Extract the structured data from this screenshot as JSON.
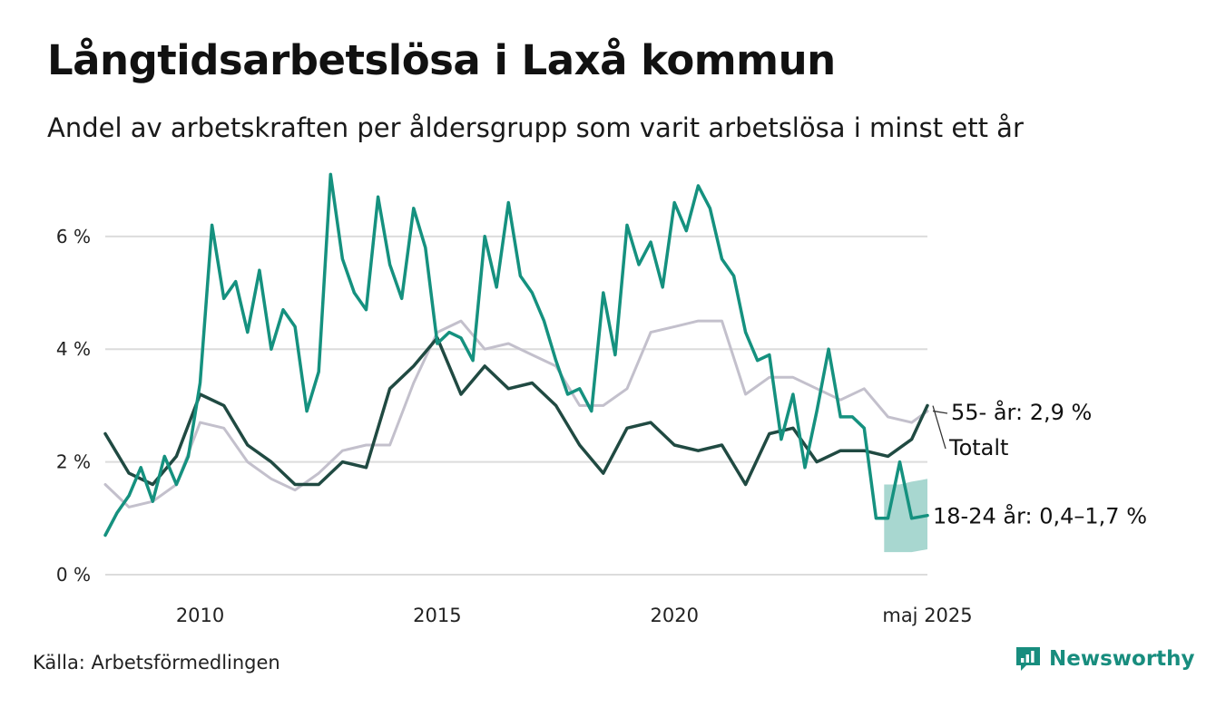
{
  "header": {
    "title": "Långtidsarbetslösa i Laxå kommun",
    "subtitle": "Andel av arbetskraften per åldersgrupp som varit arbetslösa i minst ett år"
  },
  "footer": {
    "source": "Källa: Arbetsförmedlingen",
    "brand": "Newsworthy"
  },
  "colors": {
    "youth": "#15917f",
    "total": "#204a42",
    "older": "#c3c0cc",
    "band": "#9fd3cb",
    "grid": "#dcdcdc",
    "brand": "#188d7e"
  },
  "chart_data": {
    "type": "line",
    "title": "Långtidsarbetslösa i Laxå kommun",
    "subtitle": "Andel av arbetskraften per åldersgrupp som varit arbetslösa i minst ett år",
    "xlabel": "",
    "ylabel": "",
    "x_range": [
      2008.0,
      2025.333
    ],
    "ylim": [
      0,
      7.3
    ],
    "y_ticks": [
      0,
      2,
      4,
      6
    ],
    "y_tick_labels": [
      "0 %",
      "2 %",
      "4 %",
      "6 %"
    ],
    "x_ticks": [
      2010,
      2015,
      2020,
      2025.333
    ],
    "x_tick_labels": [
      "2010",
      "2015",
      "2020",
      "maj 2025"
    ],
    "grid": true,
    "legend": "direct labels at line ends",
    "series": [
      {
        "key": "older",
        "end_label": "55- år: 2,9 %",
        "x": [
          2008.0,
          2008.5,
          2009.0,
          2009.5,
          2010.0,
          2010.5,
          2011.0,
          2011.5,
          2012.0,
          2012.5,
          2013.0,
          2013.5,
          2014.0,
          2014.5,
          2015.0,
          2015.5,
          2016.0,
          2016.5,
          2017.0,
          2017.5,
          2018.0,
          2018.5,
          2019.0,
          2019.5,
          2020.0,
          2020.5,
          2021.0,
          2021.5,
          2022.0,
          2022.5,
          2023.0,
          2023.5,
          2024.0,
          2024.5,
          2025.0,
          2025.333
        ],
        "values": [
          1.6,
          1.2,
          1.3,
          1.6,
          2.7,
          2.6,
          2.0,
          1.7,
          1.5,
          1.8,
          2.2,
          2.3,
          2.3,
          3.4,
          4.3,
          4.5,
          4.0,
          4.1,
          3.9,
          3.7,
          3.0,
          3.0,
          3.3,
          4.3,
          4.4,
          4.5,
          4.5,
          3.2,
          3.5,
          3.5,
          3.3,
          3.1,
          3.3,
          2.8,
          2.7,
          2.9
        ]
      },
      {
        "key": "total",
        "end_label": "Totalt",
        "x": [
          2008.0,
          2008.5,
          2009.0,
          2009.5,
          2010.0,
          2010.5,
          2011.0,
          2011.5,
          2012.0,
          2012.5,
          2013.0,
          2013.5,
          2014.0,
          2014.5,
          2015.0,
          2015.5,
          2016.0,
          2016.5,
          2017.0,
          2017.5,
          2018.0,
          2018.5,
          2019.0,
          2019.5,
          2020.0,
          2020.5,
          2021.0,
          2021.5,
          2022.0,
          2022.5,
          2023.0,
          2023.5,
          2024.0,
          2024.5,
          2025.0,
          2025.333
        ],
        "values": [
          2.5,
          1.8,
          1.6,
          2.1,
          3.2,
          3.0,
          2.3,
          2.0,
          1.6,
          1.6,
          2.0,
          1.9,
          3.3,
          3.7,
          4.2,
          3.2,
          3.7,
          3.3,
          3.4,
          3.0,
          2.3,
          1.8,
          2.6,
          2.7,
          2.3,
          2.2,
          2.3,
          1.6,
          2.5,
          2.6,
          2.0,
          2.2,
          2.2,
          2.1,
          2.4,
          3.0
        ]
      },
      {
        "key": "youth",
        "end_label": "18-24 år: 0,4–1,7 %",
        "x": [
          2008.0,
          2008.25,
          2008.5,
          2008.75,
          2009.0,
          2009.25,
          2009.5,
          2009.75,
          2010.0,
          2010.25,
          2010.5,
          2010.75,
          2011.0,
          2011.25,
          2011.5,
          2011.75,
          2012.0,
          2012.25,
          2012.5,
          2012.75,
          2013.0,
          2013.25,
          2013.5,
          2013.75,
          2014.0,
          2014.25,
          2014.5,
          2014.75,
          2015.0,
          2015.25,
          2015.5,
          2015.75,
          2016.0,
          2016.25,
          2016.5,
          2016.75,
          2017.0,
          2017.25,
          2017.5,
          2017.75,
          2018.0,
          2018.25,
          2018.5,
          2018.75,
          2019.0,
          2019.25,
          2019.5,
          2019.75,
          2020.0,
          2020.25,
          2020.5,
          2020.75,
          2021.0,
          2021.25,
          2021.5,
          2021.75,
          2022.0,
          2022.25,
          2022.5,
          2022.75,
          2023.0,
          2023.25,
          2023.5,
          2023.75,
          2024.0,
          2024.25,
          2024.5,
          2024.75,
          2025.0,
          2025.333
        ],
        "values": [
          0.7,
          1.1,
          1.4,
          1.9,
          1.3,
          2.1,
          1.6,
          2.1,
          3.4,
          6.2,
          4.9,
          5.2,
          4.3,
          5.4,
          4.0,
          4.7,
          4.4,
          2.9,
          3.6,
          7.1,
          5.6,
          5.0,
          4.7,
          6.7,
          5.5,
          4.9,
          6.5,
          5.8,
          4.1,
          4.3,
          4.2,
          3.8,
          6.0,
          5.1,
          6.6,
          5.3,
          5.0,
          4.5,
          3.8,
          3.2,
          3.3,
          2.9,
          5.0,
          3.9,
          6.2,
          5.5,
          5.9,
          5.1,
          6.6,
          6.1,
          6.9,
          6.5,
          5.6,
          5.3,
          4.3,
          3.8,
          3.9,
          2.4,
          3.2,
          1.9,
          2.9,
          4.0,
          2.8,
          2.8,
          2.6,
          1.0,
          1.0,
          2.0,
          1.0,
          1.05
        ]
      }
    ],
    "uncertainty_band": {
      "series": "youth",
      "x": [
        2024.42,
        2024.75,
        2025.0,
        2025.333
      ],
      "low": [
        0.4,
        0.4,
        0.4,
        0.45
      ],
      "high": [
        1.6,
        1.6,
        1.65,
        1.7
      ]
    }
  }
}
